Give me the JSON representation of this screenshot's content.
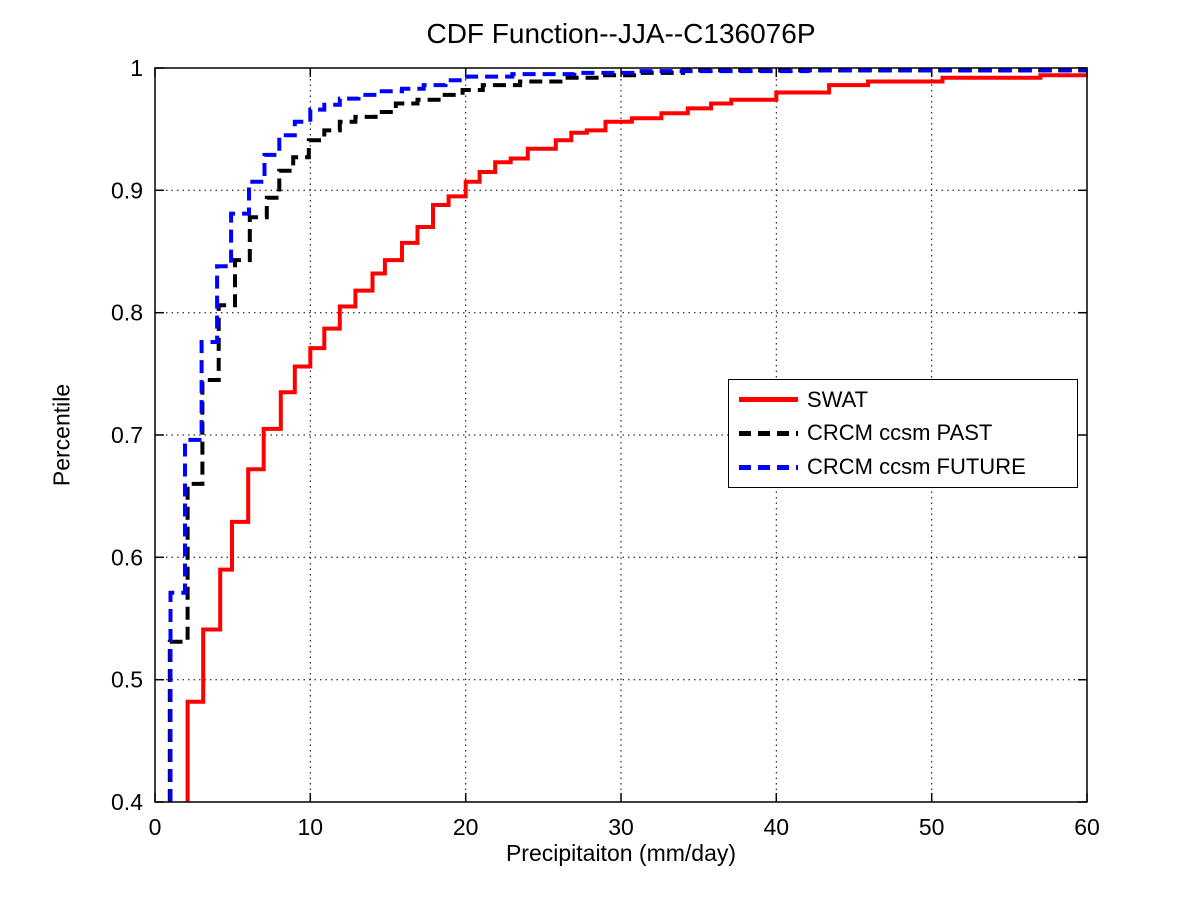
{
  "figure": {
    "background": "#ffffff",
    "axis_color": "#000000"
  },
  "chart_data": {
    "type": "line",
    "subtype": "step-cdf",
    "title": "CDF Function--JJA--C136076P",
    "xlabel": "Precipitaiton (mm/day)",
    "ylabel": "Percentile",
    "xlim": [
      0,
      60
    ],
    "ylim": [
      0.4,
      1
    ],
    "grid": "dotted",
    "grid_color": "#000000",
    "x_ticks": {
      "values": [
        0,
        10,
        20,
        30,
        40,
        50,
        60
      ],
      "labels": [
        "0",
        "10",
        "20",
        "30",
        "40",
        "50",
        "60"
      ]
    },
    "y_ticks": {
      "values": [
        0.4,
        0.5,
        0.6,
        0.7,
        0.8,
        0.9,
        1
      ],
      "labels": [
        "0.4",
        "0.5",
        "0.6",
        "0.7",
        "0.8",
        "0.9",
        "1"
      ]
    },
    "legend": {
      "position": "middle-right",
      "border_color": "#000000",
      "background": "#ffffff"
    },
    "series": [
      {
        "name": "SWAT",
        "color": "#ff0000",
        "line_style": "solid",
        "line_width": 4,
        "step_points": [
          [
            2.1,
            0.482
          ],
          [
            3.1,
            0.541
          ],
          [
            4.2,
            0.59
          ],
          [
            4.96,
            0.629
          ],
          [
            6.0,
            0.672
          ],
          [
            7.0,
            0.705
          ],
          [
            8.1,
            0.735
          ],
          [
            9.0,
            0.756
          ],
          [
            10.0,
            0.771
          ],
          [
            10.9,
            0.787
          ],
          [
            11.9,
            0.805
          ],
          [
            12.9,
            0.818
          ],
          [
            14.0,
            0.832
          ],
          [
            14.8,
            0.843
          ],
          [
            15.9,
            0.857
          ],
          [
            16.9,
            0.87
          ],
          [
            17.9,
            0.888
          ],
          [
            18.9,
            0.895
          ],
          [
            20.0,
            0.907
          ],
          [
            20.9,
            0.915
          ],
          [
            21.9,
            0.923
          ],
          [
            22.9,
            0.926
          ],
          [
            24.0,
            0.934
          ],
          [
            25.8,
            0.941
          ],
          [
            26.8,
            0.947
          ],
          [
            27.8,
            0.949
          ],
          [
            29.0,
            0.956
          ],
          [
            30.7,
            0.959
          ],
          [
            32.6,
            0.963
          ],
          [
            34.3,
            0.967
          ],
          [
            35.8,
            0.971
          ],
          [
            37.1,
            0.974
          ],
          [
            40.0,
            0.98
          ],
          [
            43.4,
            0.986
          ],
          [
            45.9,
            0.989
          ],
          [
            50.7,
            0.992
          ],
          [
            57.0,
            0.994
          ]
        ]
      },
      {
        "name": "CRCM ccsm PAST",
        "color": "#000000",
        "line_style": "dashed",
        "line_width": 4,
        "step_points": [
          [
            0.95,
            0.531
          ],
          [
            2.1,
            0.66
          ],
          [
            3.05,
            0.745
          ],
          [
            4.1,
            0.806
          ],
          [
            5.15,
            0.843
          ],
          [
            6.1,
            0.878
          ],
          [
            7.2,
            0.894
          ],
          [
            8.0,
            0.916
          ],
          [
            8.9,
            0.927
          ],
          [
            9.9,
            0.941
          ],
          [
            10.9,
            0.949
          ],
          [
            11.9,
            0.956
          ],
          [
            12.9,
            0.96
          ],
          [
            14.2,
            0.964
          ],
          [
            15.5,
            0.971
          ],
          [
            16.9,
            0.974
          ],
          [
            18.5,
            0.978
          ],
          [
            19.8,
            0.982
          ],
          [
            21.1,
            0.986
          ],
          [
            23.5,
            0.989
          ],
          [
            26.1,
            0.992
          ],
          [
            28.7,
            0.994
          ],
          [
            31.4,
            0.996
          ],
          [
            34.0,
            0.998
          ]
        ]
      },
      {
        "name": "CRCM ccsm FUTURE",
        "color": "#0000ff",
        "line_style": "dashed",
        "line_width": 4,
        "step_points": [
          [
            1.0,
            0.571
          ],
          [
            1.93,
            0.696
          ],
          [
            3.0,
            0.776
          ],
          [
            4.0,
            0.838
          ],
          [
            4.9,
            0.881
          ],
          [
            6.05,
            0.907
          ],
          [
            7.05,
            0.929
          ],
          [
            8.0,
            0.945
          ],
          [
            9.0,
            0.956
          ],
          [
            10.0,
            0.966
          ],
          [
            10.9,
            0.97
          ],
          [
            11.9,
            0.975
          ],
          [
            13.1,
            0.978
          ],
          [
            14.4,
            0.981
          ],
          [
            15.9,
            0.983
          ],
          [
            17.3,
            0.986
          ],
          [
            18.7,
            0.99
          ],
          [
            20.1,
            0.993
          ],
          [
            23.0,
            0.995
          ],
          [
            27.0,
            0.996
          ],
          [
            31.0,
            0.9975
          ],
          [
            42.0,
            0.998
          ]
        ]
      }
    ]
  }
}
